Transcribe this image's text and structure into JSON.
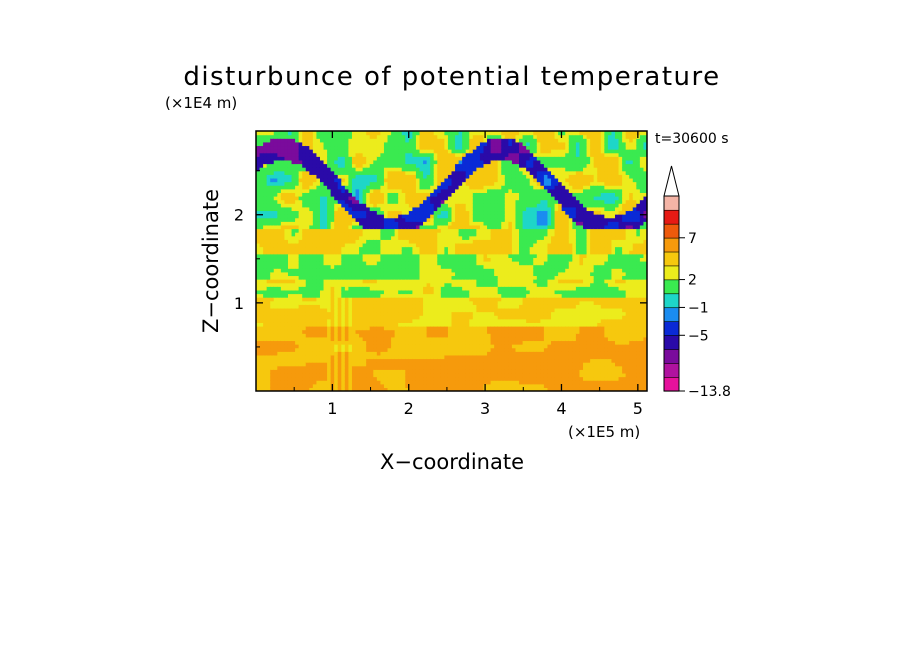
{
  "chart_data": {
    "type": "heatmap",
    "title": "disturbunce of potential temperature",
    "xlabel": "X−coordinate",
    "ylabel": "Z−coordinate",
    "x_unit": "(×1E5 m)",
    "y_unit": "(×1E4 m)",
    "time_label": "t=30600 s",
    "xlim": [
      0,
      5.12
    ],
    "ylim": [
      0,
      2.95
    ],
    "x_ticks": [
      1,
      2,
      3,
      4,
      5
    ],
    "x_tick_labels": [
      "1",
      "2",
      "3",
      "4",
      "5"
    ],
    "y_ticks": [
      1,
      2
    ],
    "y_tick_labels": [
      "1",
      "2"
    ],
    "colorbar": {
      "levels": [
        -13.8,
        -11,
        -9,
        -7,
        -5,
        -3,
        -1,
        0,
        2,
        3,
        5,
        7,
        9,
        11
      ],
      "level_labels": [
        "−13.8",
        "−5",
        "−1",
        "2",
        "7"
      ],
      "label_levels": [
        -13.8,
        -5,
        -1,
        2,
        7
      ],
      "colors": [
        "#e6119c",
        "#b0129f",
        "#7a0b9c",
        "#2a0aa8",
        "#0a2ad6",
        "#1a8cf0",
        "#1ed6c8",
        "#3aea50",
        "#ecec1c",
        "#f6c80e",
        "#f69a0c",
        "#ee5a0c",
        "#e61a14",
        "#f4b4a6"
      ],
      "extend": "max"
    },
    "grid": false
  }
}
